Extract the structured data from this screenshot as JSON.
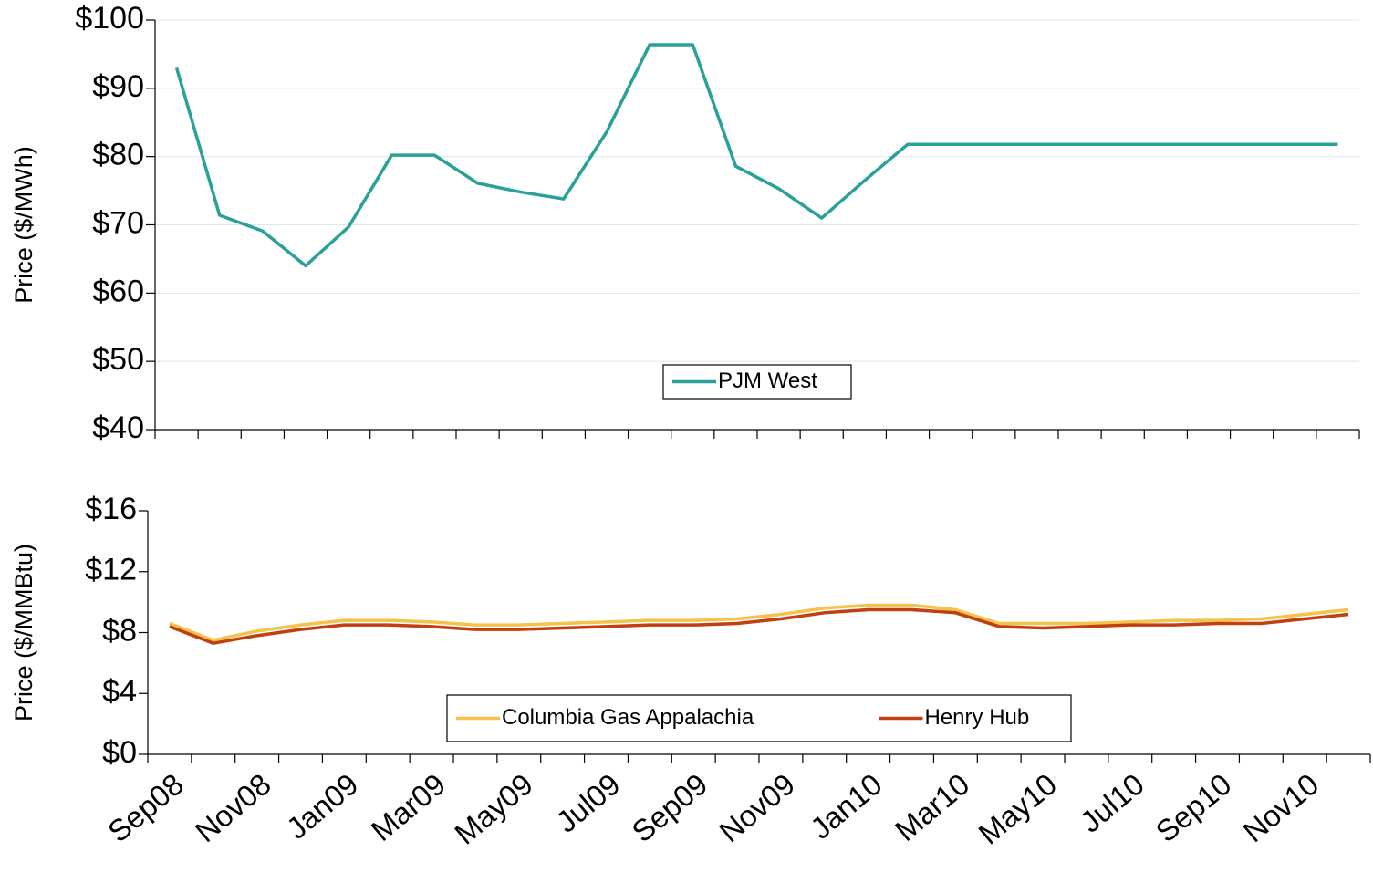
{
  "chart_data": [
    {
      "type": "line",
      "y_label": "Price ($/MWh)",
      "ylim": [
        40,
        100
      ],
      "yticks": [
        {
          "value": 40,
          "label": "$40"
        },
        {
          "value": 50,
          "label": "$50"
        },
        {
          "value": 60,
          "label": "$60"
        },
        {
          "value": 70,
          "label": "$70"
        },
        {
          "value": 80,
          "label": "$80"
        },
        {
          "value": 90,
          "label": "$90"
        },
        {
          "value": 100,
          "label": "$100"
        }
      ],
      "grid": true,
      "legend": "lower center",
      "series": [
        {
          "name": "PJM West",
          "color": "#2aa198",
          "values": [
            93.0,
            71.4,
            69.1,
            64.0,
            69.7,
            80.2,
            80.2,
            76.1,
            74.8,
            73.8,
            83.6,
            96.4,
            96.4,
            78.6,
            75.3,
            71.0,
            76.5,
            81.8,
            81.8,
            81.8,
            81.8,
            81.8,
            81.8,
            81.8,
            81.8,
            81.8,
            81.8,
            81.8
          ]
        }
      ]
    },
    {
      "type": "line",
      "y_label": "Price ($/MMBtu)",
      "categories": [
        "Sep08",
        null,
        "Nov08",
        null,
        "Jan09",
        null,
        "Mar09",
        null,
        "May09",
        null,
        "Jul09",
        null,
        "Sep09",
        null,
        "Nov09",
        null,
        "Jan10",
        null,
        "Mar10",
        null,
        "May10",
        null,
        "Jul10",
        null,
        "Sep10",
        null,
        "Nov10",
        null
      ],
      "ylim": [
        0,
        16
      ],
      "yticks": [
        {
          "value": 0,
          "label": "$0"
        },
        {
          "value": 4,
          "label": "$4"
        },
        {
          "value": 8,
          "label": "$8"
        },
        {
          "value": 12,
          "label": "$12"
        },
        {
          "value": 16,
          "label": "$16"
        }
      ],
      "grid": false,
      "legend": "lower center",
      "series": [
        {
          "name": "Columbia Gas Appalachia",
          "color": "#f5c24c",
          "values": [
            8.6,
            7.5,
            8.1,
            8.5,
            8.8,
            8.8,
            8.7,
            8.5,
            8.5,
            8.6,
            8.7,
            8.8,
            8.8,
            8.9,
            9.2,
            9.6,
            9.8,
            9.8,
            9.5,
            8.6,
            8.6,
            8.6,
            8.7,
            8.8,
            8.8,
            8.9,
            9.2,
            9.5
          ]
        },
        {
          "name": "Henry Hub",
          "color": "#c0400f",
          "values": [
            8.4,
            7.3,
            7.8,
            8.2,
            8.5,
            8.5,
            8.4,
            8.2,
            8.2,
            8.3,
            8.4,
            8.5,
            8.5,
            8.6,
            8.9,
            9.3,
            9.5,
            9.5,
            9.3,
            8.4,
            8.3,
            8.4,
            8.5,
            8.5,
            8.6,
            8.6,
            8.9,
            9.2
          ]
        }
      ]
    }
  ]
}
